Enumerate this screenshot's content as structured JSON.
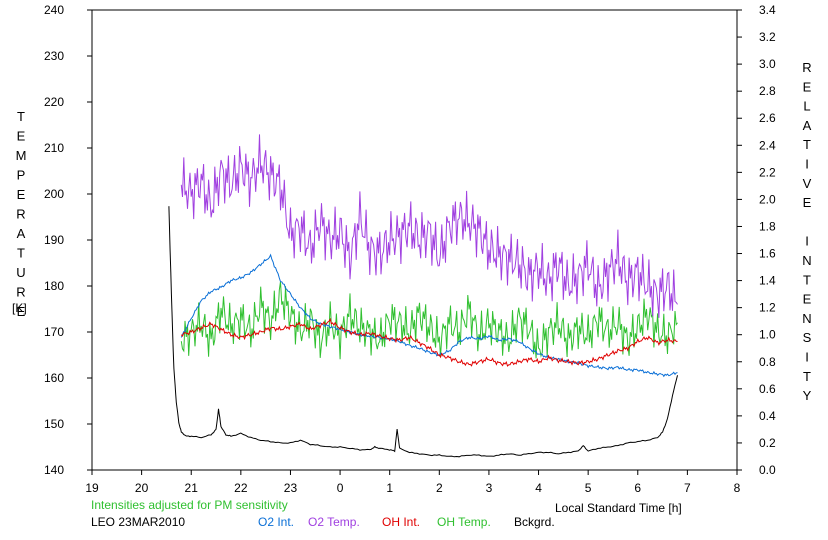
{
  "chart_data": {
    "type": "line",
    "xlabel": "Local Standard Time [h]",
    "x_ticks": [
      "19",
      "20",
      "21",
      "22",
      "23",
      "0",
      "1",
      "2",
      "3",
      "4",
      "5",
      "6",
      "7",
      "8"
    ],
    "xlim": [
      19,
      32
    ],
    "ylabel_left": "TEMPERATURE",
    "ylabel_left_unit": "[K]",
    "ylim_left": [
      140,
      240
    ],
    "y_ticks_left": [
      "140",
      "150",
      "160",
      "170",
      "180",
      "190",
      "200",
      "210",
      "220",
      "230",
      "240"
    ],
    "ylabel_right": "RELATIVE INTENSITY",
    "ylim_right": [
      0.0,
      3.4
    ],
    "y_ticks_right": [
      "0.0",
      "0.2",
      "0.4",
      "0.6",
      "0.8",
      "1.0",
      "1.2",
      "1.4",
      "1.6",
      "1.8",
      "2.0",
      "2.2",
      "2.4",
      "2.6",
      "2.8",
      "3.0",
      "3.2",
      "3.4"
    ],
    "note": "Intensities adjusted for PM sensitivity",
    "station": "LEO 23MAR2010",
    "series": [
      {
        "name": "O2 Int.",
        "axis": "right",
        "color": "#0a6fd6",
        "x": [
          20.8,
          21.0,
          21.2,
          21.4,
          21.6,
          21.8,
          22.0,
          22.2,
          22.4,
          22.6,
          22.8,
          23.0,
          23.2,
          23.4,
          23.6,
          23.8,
          24.0,
          24.2,
          24.4,
          24.6,
          24.8,
          25.0,
          25.2,
          25.4,
          25.6,
          25.8,
          26.0,
          26.2,
          26.4,
          26.6,
          26.8,
          27.0,
          27.2,
          27.4,
          27.6,
          27.8,
          28.0,
          28.2,
          28.4,
          28.6,
          28.8,
          29.0,
          29.2,
          29.4,
          29.6,
          29.8,
          30.0,
          30.2,
          30.4,
          30.6,
          30.8
        ],
        "y": [
          0.98,
          1.12,
          1.25,
          1.32,
          1.35,
          1.4,
          1.42,
          1.46,
          1.52,
          1.58,
          1.4,
          1.3,
          1.2,
          1.12,
          1.08,
          1.06,
          1.04,
          1.02,
          1.0,
          0.99,
          0.98,
          0.97,
          0.95,
          0.92,
          0.9,
          0.87,
          0.85,
          0.88,
          0.95,
          0.98,
          0.97,
          0.99,
          0.96,
          0.97,
          0.95,
          0.9,
          0.86,
          0.83,
          0.82,
          0.8,
          0.79,
          0.77,
          0.76,
          0.75,
          0.76,
          0.74,
          0.74,
          0.72,
          0.71,
          0.7,
          0.72
        ]
      },
      {
        "name": "O2 Temp.",
        "axis": "left",
        "color": "#a040e0",
        "x": [
          20.8,
          21.0,
          21.2,
          21.4,
          21.6,
          21.8,
          22.0,
          22.2,
          22.4,
          22.6,
          22.8,
          23.0,
          23.2,
          23.4,
          23.6,
          23.8,
          24.0,
          24.2,
          24.4,
          24.6,
          24.8,
          25.0,
          25.2,
          25.4,
          25.6,
          25.8,
          26.0,
          26.2,
          26.4,
          26.6,
          26.8,
          27.0,
          27.2,
          27.4,
          27.6,
          27.8,
          28.0,
          28.2,
          28.4,
          28.6,
          28.8,
          29.0,
          29.2,
          29.4,
          29.6,
          29.8,
          30.0,
          30.2,
          30.4,
          30.6,
          30.8
        ],
        "y": [
          202,
          200,
          203,
          197,
          205,
          202,
          206,
          203,
          207,
          204,
          202,
          191,
          193,
          188,
          194,
          190,
          192,
          186,
          195,
          188,
          187,
          190,
          191,
          193,
          190,
          192,
          186,
          193,
          195,
          194,
          192,
          188,
          187,
          186,
          185,
          182,
          184,
          181,
          185,
          180,
          182,
          185,
          179,
          183,
          186,
          181,
          183,
          180,
          178,
          180,
          176
        ]
      },
      {
        "name": "OH Int.",
        "axis": "right",
        "color": "#e00000",
        "x": [
          20.8,
          21.0,
          21.2,
          21.4,
          21.6,
          21.8,
          22.0,
          22.2,
          22.4,
          22.6,
          22.8,
          23.0,
          23.2,
          23.4,
          23.6,
          23.8,
          24.0,
          24.2,
          24.4,
          24.6,
          24.8,
          25.0,
          25.2,
          25.4,
          25.6,
          25.8,
          26.0,
          26.2,
          26.4,
          26.6,
          26.8,
          27.0,
          27.2,
          27.4,
          27.6,
          27.8,
          28.0,
          28.2,
          28.4,
          28.6,
          28.8,
          29.0,
          29.2,
          29.4,
          29.6,
          29.8,
          30.0,
          30.2,
          30.4,
          30.6,
          30.8
        ],
        "y": [
          1.0,
          1.02,
          1.05,
          1.08,
          1.04,
          1.0,
          0.98,
          1.0,
          1.02,
          1.05,
          1.04,
          1.06,
          1.08,
          1.04,
          1.07,
          1.1,
          1.05,
          1.02,
          1.0,
          1.01,
          0.99,
          0.97,
          0.96,
          0.98,
          0.94,
          0.9,
          0.85,
          0.83,
          0.8,
          0.78,
          0.8,
          0.82,
          0.79,
          0.78,
          0.8,
          0.82,
          0.8,
          0.83,
          0.81,
          0.8,
          0.79,
          0.8,
          0.82,
          0.85,
          0.88,
          0.9,
          0.95,
          0.98,
          0.94,
          0.96,
          0.95
        ]
      },
      {
        "name": "OH Temp.",
        "axis": "left",
        "color": "#30c030",
        "x": [
          20.8,
          21.0,
          21.2,
          21.4,
          21.6,
          21.8,
          22.0,
          22.2,
          22.4,
          22.6,
          22.8,
          23.0,
          23.2,
          23.4,
          23.6,
          23.8,
          24.0,
          24.2,
          24.4,
          24.6,
          24.8,
          25.0,
          25.2,
          25.4,
          25.6,
          25.8,
          26.0,
          26.2,
          26.4,
          26.6,
          26.8,
          27.0,
          27.2,
          27.4,
          27.6,
          27.8,
          28.0,
          28.2,
          28.4,
          28.6,
          28.8,
          29.0,
          29.2,
          29.4,
          29.6,
          29.8,
          30.0,
          30.2,
          30.4,
          30.6,
          30.8
        ],
        "y": [
          168,
          170,
          172,
          168,
          175,
          171,
          173,
          170,
          176,
          172,
          178,
          174,
          170,
          173,
          168,
          172,
          169,
          174,
          171,
          170,
          168,
          173,
          172,
          170,
          174,
          171,
          168,
          172,
          170,
          175,
          169,
          172,
          170,
          168,
          173,
          171,
          166,
          170,
          172,
          168,
          171,
          169,
          173,
          170,
          172,
          168,
          171,
          174,
          170,
          169,
          172
        ]
      },
      {
        "name": "Bckgrd.",
        "axis": "right",
        "color": "#000000",
        "x": [
          20.55,
          20.6,
          20.65,
          20.7,
          20.75,
          20.8,
          20.9,
          21.0,
          21.2,
          21.4,
          21.5,
          21.55,
          21.6,
          21.7,
          21.8,
          22.0,
          22.2,
          22.4,
          22.6,
          22.8,
          23.0,
          23.2,
          23.4,
          23.6,
          23.8,
          24.0,
          24.2,
          24.4,
          24.6,
          24.7,
          24.8,
          25.0,
          25.1,
          25.15,
          25.2,
          25.4,
          25.6,
          25.8,
          26.0,
          26.2,
          26.4,
          26.6,
          26.8,
          27.0,
          27.2,
          27.4,
          27.6,
          27.8,
          28.0,
          28.2,
          28.4,
          28.6,
          28.8,
          28.9,
          29.0,
          29.2,
          29.4,
          29.6,
          29.8,
          30.0,
          30.2,
          30.4,
          30.5,
          30.6,
          30.7,
          30.8
        ],
        "y": [
          1.95,
          1.3,
          0.75,
          0.5,
          0.35,
          0.28,
          0.25,
          0.25,
          0.24,
          0.26,
          0.3,
          0.45,
          0.32,
          0.26,
          0.25,
          0.27,
          0.24,
          0.22,
          0.21,
          0.2,
          0.2,
          0.22,
          0.19,
          0.18,
          0.17,
          0.17,
          0.16,
          0.15,
          0.15,
          0.17,
          0.16,
          0.15,
          0.14,
          0.3,
          0.16,
          0.13,
          0.12,
          0.11,
          0.11,
          0.1,
          0.1,
          0.11,
          0.11,
          0.1,
          0.11,
          0.12,
          0.11,
          0.12,
          0.13,
          0.13,
          0.12,
          0.13,
          0.14,
          0.18,
          0.14,
          0.16,
          0.17,
          0.18,
          0.2,
          0.21,
          0.22,
          0.24,
          0.28,
          0.38,
          0.55,
          0.7
        ]
      }
    ]
  }
}
